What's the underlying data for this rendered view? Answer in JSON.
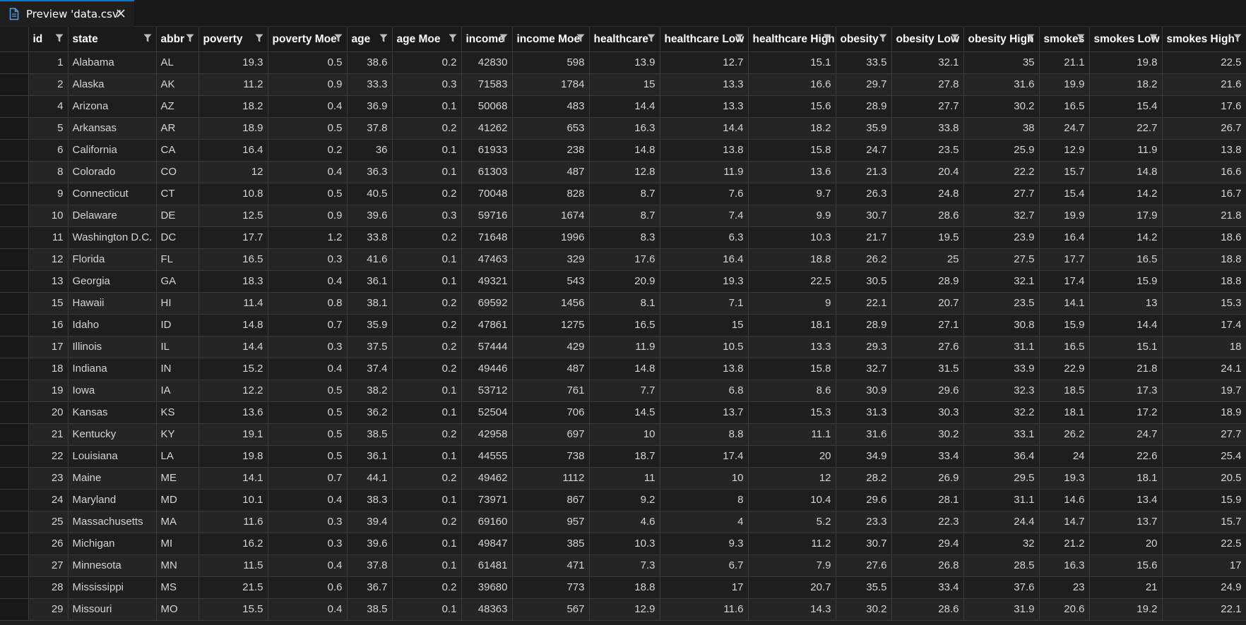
{
  "tab": {
    "label": "Preview 'data.csv'",
    "icon": "file-icon",
    "close_icon": "close-icon"
  },
  "columns": [
    "id",
    "state",
    "abbr",
    "poverty",
    "poverty Moe",
    "age",
    "age Moe",
    "income",
    "income Moe",
    "healthcare",
    "healthcare Low",
    "healthcare High",
    "obesity",
    "obesity Low",
    "obesity High",
    "smokes",
    "smokes Low",
    "smokes High"
  ],
  "rows": [
    [
      "1",
      "Alabama",
      "AL",
      "19.3",
      "0.5",
      "38.6",
      "0.2",
      "42830",
      "598",
      "13.9",
      "12.7",
      "15.1",
      "33.5",
      "32.1",
      "35",
      "21.1",
      "19.8",
      "22.5"
    ],
    [
      "2",
      "Alaska",
      "AK",
      "11.2",
      "0.9",
      "33.3",
      "0.3",
      "71583",
      "1784",
      "15",
      "13.3",
      "16.6",
      "29.7",
      "27.8",
      "31.6",
      "19.9",
      "18.2",
      "21.6"
    ],
    [
      "4",
      "Arizona",
      "AZ",
      "18.2",
      "0.4",
      "36.9",
      "0.1",
      "50068",
      "483",
      "14.4",
      "13.3",
      "15.6",
      "28.9",
      "27.7",
      "30.2",
      "16.5",
      "15.4",
      "17.6"
    ],
    [
      "5",
      "Arkansas",
      "AR",
      "18.9",
      "0.5",
      "37.8",
      "0.2",
      "41262",
      "653",
      "16.3",
      "14.4",
      "18.2",
      "35.9",
      "33.8",
      "38",
      "24.7",
      "22.7",
      "26.7"
    ],
    [
      "6",
      "California",
      "CA",
      "16.4",
      "0.2",
      "36",
      "0.1",
      "61933",
      "238",
      "14.8",
      "13.8",
      "15.8",
      "24.7",
      "23.5",
      "25.9",
      "12.9",
      "11.9",
      "13.8"
    ],
    [
      "8",
      "Colorado",
      "CO",
      "12",
      "0.4",
      "36.3",
      "0.1",
      "61303",
      "487",
      "12.8",
      "11.9",
      "13.6",
      "21.3",
      "20.4",
      "22.2",
      "15.7",
      "14.8",
      "16.6"
    ],
    [
      "9",
      "Connecticut",
      "CT",
      "10.8",
      "0.5",
      "40.5",
      "0.2",
      "70048",
      "828",
      "8.7",
      "7.6",
      "9.7",
      "26.3",
      "24.8",
      "27.7",
      "15.4",
      "14.2",
      "16.7"
    ],
    [
      "10",
      "Delaware",
      "DE",
      "12.5",
      "0.9",
      "39.6",
      "0.3",
      "59716",
      "1674",
      "8.7",
      "7.4",
      "9.9",
      "30.7",
      "28.6",
      "32.7",
      "19.9",
      "17.9",
      "21.8"
    ],
    [
      "11",
      "Washington D.C.",
      "DC",
      "17.7",
      "1.2",
      "33.8",
      "0.2",
      "71648",
      "1996",
      "8.3",
      "6.3",
      "10.3",
      "21.7",
      "19.5",
      "23.9",
      "16.4",
      "14.2",
      "18.6"
    ],
    [
      "12",
      "Florida",
      "FL",
      "16.5",
      "0.3",
      "41.6",
      "0.1",
      "47463",
      "329",
      "17.6",
      "16.4",
      "18.8",
      "26.2",
      "25",
      "27.5",
      "17.7",
      "16.5",
      "18.8"
    ],
    [
      "13",
      "Georgia",
      "GA",
      "18.3",
      "0.4",
      "36.1",
      "0.1",
      "49321",
      "543",
      "20.9",
      "19.3",
      "22.5",
      "30.5",
      "28.9",
      "32.1",
      "17.4",
      "15.9",
      "18.8"
    ],
    [
      "15",
      "Hawaii",
      "HI",
      "11.4",
      "0.8",
      "38.1",
      "0.2",
      "69592",
      "1456",
      "8.1",
      "7.1",
      "9",
      "22.1",
      "20.7",
      "23.5",
      "14.1",
      "13",
      "15.3"
    ],
    [
      "16",
      "Idaho",
      "ID",
      "14.8",
      "0.7",
      "35.9",
      "0.2",
      "47861",
      "1275",
      "16.5",
      "15",
      "18.1",
      "28.9",
      "27.1",
      "30.8",
      "15.9",
      "14.4",
      "17.4"
    ],
    [
      "17",
      "Illinois",
      "IL",
      "14.4",
      "0.3",
      "37.5",
      "0.2",
      "57444",
      "429",
      "11.9",
      "10.5",
      "13.3",
      "29.3",
      "27.6",
      "31.1",
      "16.5",
      "15.1",
      "18"
    ],
    [
      "18",
      "Indiana",
      "IN",
      "15.2",
      "0.4",
      "37.4",
      "0.2",
      "49446",
      "487",
      "14.8",
      "13.8",
      "15.8",
      "32.7",
      "31.5",
      "33.9",
      "22.9",
      "21.8",
      "24.1"
    ],
    [
      "19",
      "Iowa",
      "IA",
      "12.2",
      "0.5",
      "38.2",
      "0.1",
      "53712",
      "761",
      "7.7",
      "6.8",
      "8.6",
      "30.9",
      "29.6",
      "32.3",
      "18.5",
      "17.3",
      "19.7"
    ],
    [
      "20",
      "Kansas",
      "KS",
      "13.6",
      "0.5",
      "36.2",
      "0.1",
      "52504",
      "706",
      "14.5",
      "13.7",
      "15.3",
      "31.3",
      "30.3",
      "32.2",
      "18.1",
      "17.2",
      "18.9"
    ],
    [
      "21",
      "Kentucky",
      "KY",
      "19.1",
      "0.5",
      "38.5",
      "0.2",
      "42958",
      "697",
      "10",
      "8.8",
      "11.1",
      "31.6",
      "30.2",
      "33.1",
      "26.2",
      "24.7",
      "27.7"
    ],
    [
      "22",
      "Louisiana",
      "LA",
      "19.8",
      "0.5",
      "36.1",
      "0.1",
      "44555",
      "738",
      "18.7",
      "17.4",
      "20",
      "34.9",
      "33.4",
      "36.4",
      "24",
      "22.6",
      "25.4"
    ],
    [
      "23",
      "Maine",
      "ME",
      "14.1",
      "0.7",
      "44.1",
      "0.2",
      "49462",
      "1112",
      "11",
      "10",
      "12",
      "28.2",
      "26.9",
      "29.5",
      "19.3",
      "18.1",
      "20.5"
    ],
    [
      "24",
      "Maryland",
      "MD",
      "10.1",
      "0.4",
      "38.3",
      "0.1",
      "73971",
      "867",
      "9.2",
      "8",
      "10.4",
      "29.6",
      "28.1",
      "31.1",
      "14.6",
      "13.4",
      "15.9"
    ],
    [
      "25",
      "Massachusetts",
      "MA",
      "11.6",
      "0.3",
      "39.4",
      "0.2",
      "69160",
      "957",
      "4.6",
      "4",
      "5.2",
      "23.3",
      "22.3",
      "24.4",
      "14.7",
      "13.7",
      "15.7"
    ],
    [
      "26",
      "Michigan",
      "MI",
      "16.2",
      "0.3",
      "39.6",
      "0.1",
      "49847",
      "385",
      "10.3",
      "9.3",
      "11.2",
      "30.7",
      "29.4",
      "32",
      "21.2",
      "20",
      "22.5"
    ],
    [
      "27",
      "Minnesota",
      "MN",
      "11.5",
      "0.4",
      "37.8",
      "0.1",
      "61481",
      "471",
      "7.3",
      "6.7",
      "7.9",
      "27.6",
      "26.8",
      "28.5",
      "16.3",
      "15.6",
      "17"
    ],
    [
      "28",
      "Mississippi",
      "MS",
      "21.5",
      "0.6",
      "36.7",
      "0.2",
      "39680",
      "773",
      "18.8",
      "17",
      "20.7",
      "35.5",
      "33.4",
      "37.6",
      "23",
      "21",
      "24.9"
    ],
    [
      "29",
      "Missouri",
      "MO",
      "15.5",
      "0.4",
      "38.5",
      "0.1",
      "48363",
      "567",
      "12.9",
      "11.6",
      "14.3",
      "30.2",
      "28.6",
      "31.9",
      "20.6",
      "19.2",
      "22.1"
    ]
  ]
}
